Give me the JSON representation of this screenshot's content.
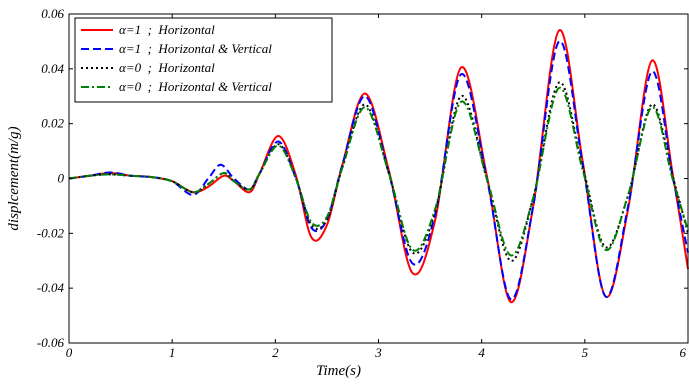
{
  "chart_data": {
    "type": "line",
    "title": "",
    "xlabel": "Time(s)",
    "ylabel": "displcement(m/g)",
    "xlim": [
      0,
      6
    ],
    "ylim": [
      -0.06,
      0.06
    ],
    "x_ticks": [
      0,
      1,
      2,
      3,
      4,
      5,
      6
    ],
    "x_tick_labels": [
      "0",
      "1",
      "2",
      "3",
      "4",
      "5",
      "6"
    ],
    "y_ticks": [
      -0.06,
      -0.04,
      -0.02,
      0,
      0.02,
      0.04,
      0.06
    ],
    "y_tick_labels": [
      "-0.06",
      "-0.04",
      "-0.02",
      "0",
      "0.02",
      "0.04",
      "0.06"
    ],
    "grid": false,
    "legend_position": "top-left",
    "series": [
      {
        "name": "α=1  ;  Horizontal",
        "color": "#ff0000",
        "dash": "solid",
        "x": [
          0,
          0.2,
          0.4,
          0.6,
          0.8,
          1.0,
          1.2,
          1.35,
          1.5,
          1.6,
          1.75,
          1.85,
          2.03,
          2.2,
          2.35,
          2.5,
          2.65,
          2.87,
          3.1,
          3.33,
          3.55,
          3.8,
          4.05,
          4.28,
          4.5,
          4.75,
          4.98,
          5.2,
          5.42,
          5.65,
          5.85,
          6.0
        ],
        "values": [
          0,
          0.001,
          0.002,
          0.001,
          0.0005,
          -0.001,
          -0.005,
          -0.003,
          0.001,
          -0.001,
          -0.005,
          0.002,
          0.0155,
          0.001,
          -0.0215,
          -0.017,
          0.005,
          0.031,
          0.003,
          -0.0345,
          -0.015,
          0.0405,
          0.001,
          -0.045,
          -0.01,
          0.054,
          0.006,
          -0.043,
          -0.011,
          0.043,
          0.002,
          -0.033
        ]
      },
      {
        "name": "α=1  ;  Horizontal & Vertical",
        "color": "#0000ff",
        "dash": "dashed",
        "x": [
          0,
          0.2,
          0.4,
          0.6,
          0.8,
          1.0,
          1.2,
          1.35,
          1.47,
          1.6,
          1.75,
          1.85,
          2.03,
          2.2,
          2.35,
          2.5,
          2.65,
          2.87,
          3.1,
          3.33,
          3.55,
          3.8,
          4.05,
          4.28,
          4.5,
          4.75,
          4.98,
          5.2,
          5.42,
          5.65,
          5.85,
          6.0
        ],
        "values": [
          0,
          0.001,
          0.0022,
          0.001,
          0.0005,
          -0.001,
          -0.006,
          0.0,
          0.005,
          0.0,
          -0.004,
          0.002,
          0.0135,
          0.0,
          -0.018,
          -0.015,
          0.005,
          0.03,
          0.002,
          -0.031,
          -0.013,
          0.038,
          0.0,
          -0.044,
          -0.01,
          0.05,
          0.005,
          -0.043,
          -0.01,
          0.039,
          0.001,
          -0.027
        ]
      },
      {
        "name": "α=0  ;  Horizontal",
        "color": "#000000",
        "dash": "dotted",
        "x": [
          0,
          0.2,
          0.4,
          0.6,
          0.8,
          1.0,
          1.2,
          1.35,
          1.5,
          1.6,
          1.75,
          1.85,
          2.03,
          2.2,
          2.35,
          2.5,
          2.65,
          2.87,
          3.1,
          3.33,
          3.55,
          3.8,
          4.05,
          4.28,
          4.5,
          4.75,
          4.98,
          5.2,
          5.42,
          5.65,
          5.85,
          6.0
        ],
        "values": [
          0,
          0.001,
          0.0015,
          0.001,
          0.0005,
          -0.001,
          -0.005,
          -0.002,
          0.002,
          -0.001,
          -0.004,
          0.002,
          0.0125,
          0.0,
          -0.017,
          -0.015,
          0.004,
          0.027,
          0.002,
          -0.027,
          -0.012,
          0.03,
          0.0,
          -0.03,
          -0.007,
          0.035,
          0.004,
          -0.025,
          -0.006,
          0.027,
          0.001,
          -0.02
        ]
      },
      {
        "name": "α=0  ;  Horizontal & Vertical",
        "color": "#008000",
        "dash": "dashdot",
        "x": [
          0,
          0.2,
          0.4,
          0.6,
          0.8,
          1.0,
          1.2,
          1.35,
          1.5,
          1.6,
          1.75,
          1.85,
          2.03,
          2.2,
          2.35,
          2.5,
          2.65,
          2.87,
          3.1,
          3.33,
          3.55,
          3.8,
          4.05,
          4.28,
          4.5,
          4.75,
          4.98,
          5.2,
          5.42,
          5.65,
          5.85,
          6.0
        ],
        "values": [
          0,
          0.001,
          0.0015,
          0.001,
          0.0005,
          -0.001,
          -0.005,
          -0.002,
          0.002,
          -0.001,
          -0.004,
          0.002,
          0.012,
          0.0,
          -0.016,
          -0.014,
          0.004,
          0.026,
          0.002,
          -0.026,
          -0.011,
          0.028,
          0.0,
          -0.028,
          -0.007,
          0.033,
          0.003,
          -0.026,
          -0.006,
          0.026,
          0.0,
          -0.019
        ]
      }
    ]
  }
}
